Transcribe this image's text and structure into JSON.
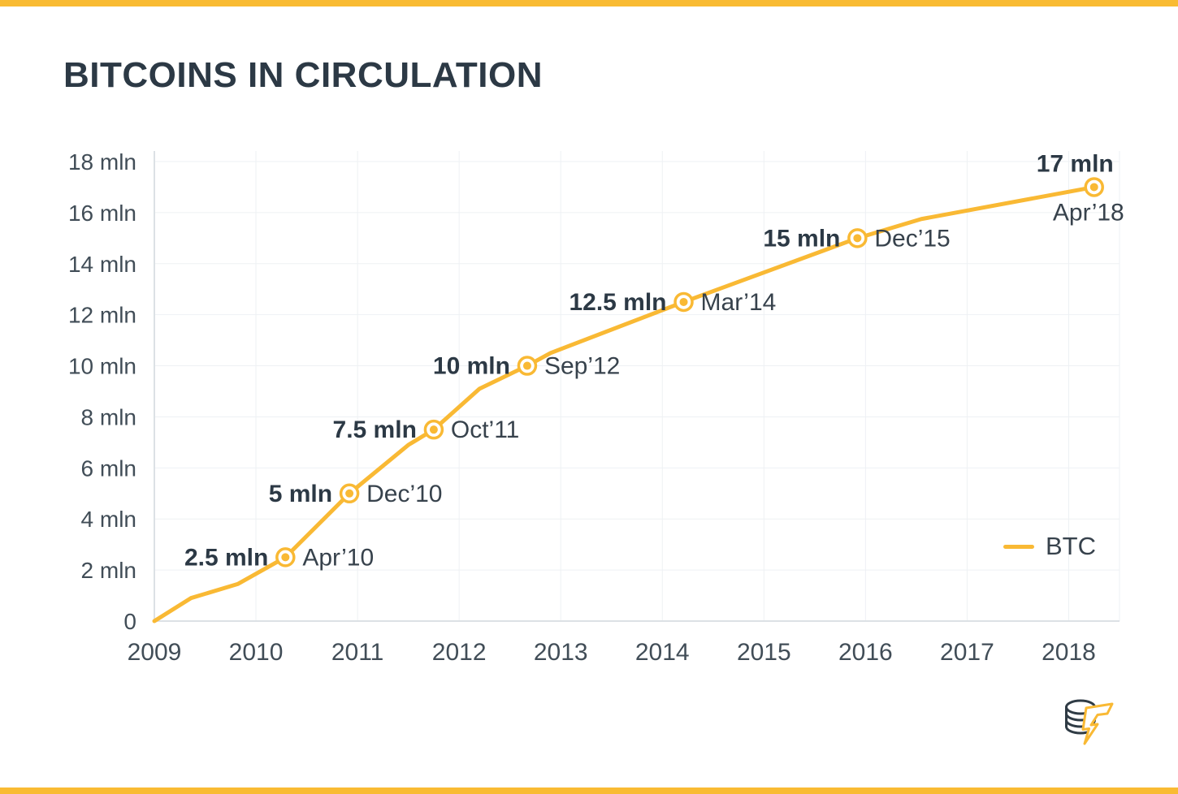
{
  "page": {
    "title": "BITCOINS IN CIRCULATION",
    "accent_color": "#F9BB33",
    "title_color": "#2C3945",
    "background": "#FFFFFF"
  },
  "chart_data": {
    "type": "line",
    "title": "BITCOINS IN CIRCULATION",
    "xlabel": "",
    "ylabel": "",
    "xlim": [
      2009,
      2018.5
    ],
    "ylim": [
      0,
      18
    ],
    "grid": true,
    "line_color": "#F9B934",
    "grid_color": "#EEF1F4",
    "axis_color": "#DCE1E5",
    "legend": {
      "label": "BTC",
      "position": "middle-right"
    },
    "x_ticks": [
      {
        "value": 2009,
        "label": "2009"
      },
      {
        "value": 2010,
        "label": "2010"
      },
      {
        "value": 2011,
        "label": "2011"
      },
      {
        "value": 2012,
        "label": "2012"
      },
      {
        "value": 2013,
        "label": "2013"
      },
      {
        "value": 2014,
        "label": "2014"
      },
      {
        "value": 2015,
        "label": "2015"
      },
      {
        "value": 2016,
        "label": "2016"
      },
      {
        "value": 2017,
        "label": "2017"
      },
      {
        "value": 2018,
        "label": "2018"
      }
    ],
    "y_ticks": [
      {
        "value": 0,
        "label": "0"
      },
      {
        "value": 2,
        "label": "2 mln"
      },
      {
        "value": 4,
        "label": "4 mln"
      },
      {
        "value": 6,
        "label": "6 mln"
      },
      {
        "value": 8,
        "label": "8 mln"
      },
      {
        "value": 10,
        "label": "10 mln"
      },
      {
        "value": 12,
        "label": "12 mln"
      },
      {
        "value": 14,
        "label": "14 mln"
      },
      {
        "value": 16,
        "label": "16 mln"
      },
      {
        "value": 18,
        "label": "18 mln"
      }
    ],
    "series": [
      {
        "name": "BTC",
        "color": "#F9B934",
        "points": [
          {
            "x": 2009.0,
            "y": 0
          },
          {
            "x": 2009.36,
            "y": 0.9
          },
          {
            "x": 2009.82,
            "y": 1.45
          },
          {
            "x": 2010.29,
            "y": 2.5
          },
          {
            "x": 2010.92,
            "y": 5
          },
          {
            "x": 2011.5,
            "y": 6.9
          },
          {
            "x": 2011.75,
            "y": 7.5
          },
          {
            "x": 2012.2,
            "y": 9.1
          },
          {
            "x": 2012.67,
            "y": 10
          },
          {
            "x": 2012.9,
            "y": 10.5
          },
          {
            "x": 2014.21,
            "y": 12.5
          },
          {
            "x": 2015.92,
            "y": 15
          },
          {
            "x": 2016.55,
            "y": 15.75
          },
          {
            "x": 2018.25,
            "y": 17
          }
        ]
      }
    ],
    "annotations": [
      {
        "x": 2010.29,
        "y": 2.5,
        "value": "2.5 mln",
        "date": "Apr’10",
        "layout": "side"
      },
      {
        "x": 2010.92,
        "y": 5,
        "value": "5 mln",
        "date": "Dec’10",
        "layout": "side"
      },
      {
        "x": 2011.75,
        "y": 7.5,
        "value": "7.5 mln",
        "date": "Oct’11",
        "layout": "side"
      },
      {
        "x": 2012.67,
        "y": 10,
        "value": "10 mln",
        "date": "Sep’12",
        "layout": "side"
      },
      {
        "x": 2014.21,
        "y": 12.5,
        "value": "12.5 mln",
        "date": "Mar’14",
        "layout": "side"
      },
      {
        "x": 2015.92,
        "y": 15,
        "value": "15 mln",
        "date": "Dec’15",
        "layout": "side"
      },
      {
        "x": 2018.25,
        "y": 17,
        "value": "17 mln",
        "date": "Apr’18",
        "layout": "stacked"
      }
    ]
  },
  "logo": {
    "name": "coin-stack-lightning"
  }
}
